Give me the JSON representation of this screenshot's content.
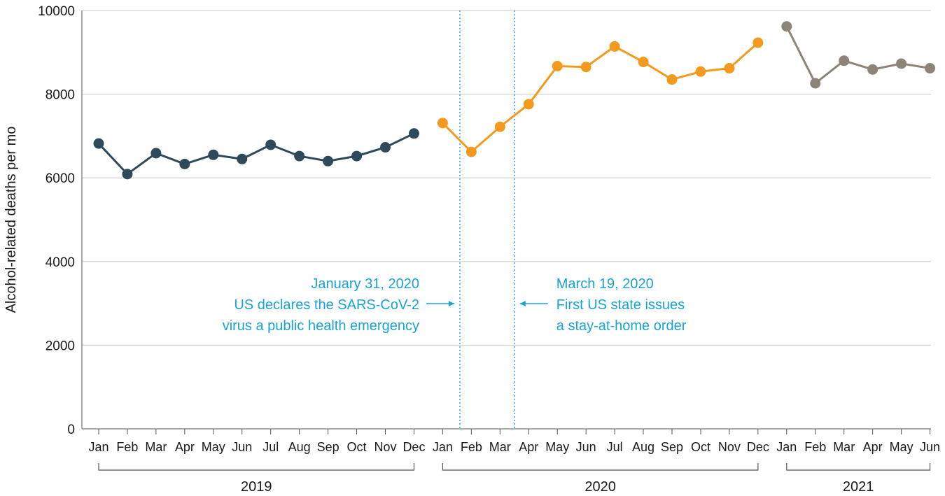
{
  "chart_data": {
    "type": "line",
    "ylabel": "Alcohol-related deaths per mo",
    "ylim": [
      0,
      10000
    ],
    "yticks": [
      0,
      2000,
      4000,
      6000,
      8000,
      10000
    ],
    "grid": true,
    "series": [
      {
        "year": "2019",
        "color": "#2e4a5a",
        "months": [
          "Jan",
          "Feb",
          "Mar",
          "Apr",
          "May",
          "Jun",
          "Jul",
          "Aug",
          "Sep",
          "Oct",
          "Nov",
          "Dec"
        ],
        "values": [
          6820,
          6090,
          6590,
          6330,
          6550,
          6450,
          6790,
          6520,
          6400,
          6520,
          6730,
          7060
        ]
      },
      {
        "year": "2020",
        "color": "#f39a1e",
        "months": [
          "Jan",
          "Feb",
          "Mar",
          "Apr",
          "May",
          "Jun",
          "Jul",
          "Aug",
          "Sep",
          "Oct",
          "Nov",
          "Dec"
        ],
        "values": [
          7310,
          6620,
          7220,
          7760,
          8670,
          8650,
          9140,
          8770,
          8350,
          8540,
          8620,
          9230
        ]
      },
      {
        "year": "2021",
        "color": "#8d8478",
        "months": [
          "Jan",
          "Feb",
          "Mar",
          "Apr",
          "May",
          "Jun"
        ],
        "values": [
          9620,
          8260,
          8800,
          8590,
          8730,
          8620
        ]
      }
    ],
    "events": [
      {
        "position": 12.6,
        "arrow": "points-right",
        "lines": [
          "January 31, 2020",
          "US declares the SARS-CoV-2",
          "virus a public health emergency"
        ]
      },
      {
        "position": 14.5,
        "arrow": "points-left",
        "lines": [
          "March 19, 2020",
          "First US state issues",
          "a stay-at-home order"
        ]
      }
    ],
    "annotation_color": "#17a3d8"
  }
}
